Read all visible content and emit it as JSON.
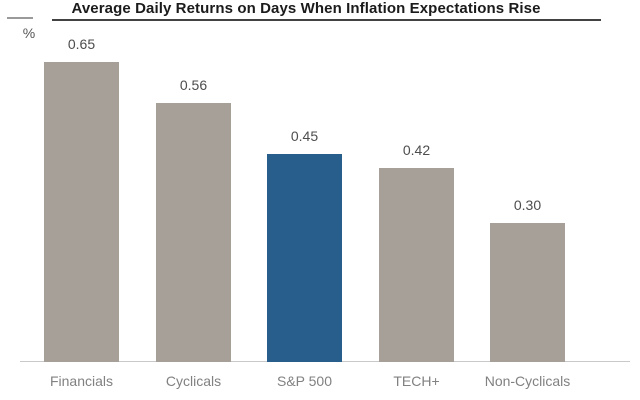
{
  "header": {
    "title": "Average Daily Returns on Days When Inflation Expectations Rise",
    "unit_label": "%"
  },
  "chart_data": {
    "type": "bar",
    "title": "Average Daily Returns on Days When Inflation Expectations Rise",
    "ylabel": "%",
    "xlabel": "",
    "categories": [
      "Financials",
      "Cyclicals",
      "S&P 500",
      "TECH+",
      "Non-Cyclicals"
    ],
    "values": [
      0.65,
      0.56,
      0.45,
      0.42,
      0.3
    ],
    "value_labels": [
      "0.65",
      "0.56",
      "0.45",
      "0.42",
      "0.30"
    ],
    "bar_colors": [
      "#a7a099",
      "#a7a099",
      "#275e8c",
      "#a7a099",
      "#a7a099"
    ],
    "highlighted_category": "S&P 500",
    "ylim": [
      0,
      0.72
    ],
    "grid": false,
    "legend": false
  },
  "colors": {
    "bar_gray": "#a7a099",
    "bar_blue": "#275e8c",
    "title_text": "#1b1b1b",
    "title_rule": "#424242",
    "unit_rule": "#9a9a9a",
    "value_label": "#4d4d4d",
    "category_label": "#818181",
    "baseline": "#c9c9c9",
    "background": "#ffffff"
  }
}
